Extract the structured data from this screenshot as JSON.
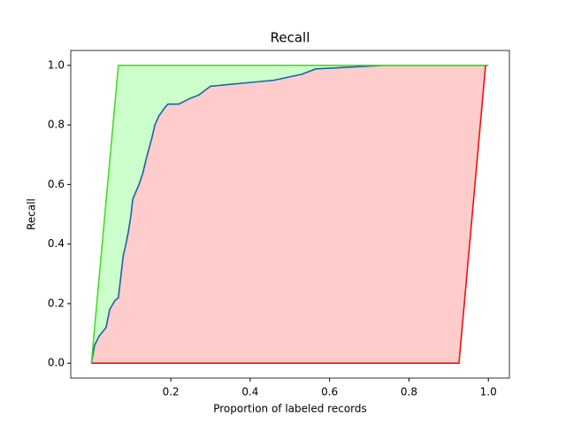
{
  "chart_data": {
    "type": "line",
    "title": "Recall",
    "x_label": "Proportion of labeled records",
    "y_label": "Recall",
    "series": [
      {
        "color": "#1f5fa8",
        "x": [
          0,
          0.008,
          0.019,
          0.037,
          0.046,
          0.059,
          0.068,
          0.075,
          0.08,
          0.087,
          0.093,
          0.1,
          0.104,
          0.12,
          0.13,
          0.137,
          0.145,
          0.153,
          0.16,
          0.17,
          0.186,
          0.193,
          0.22,
          0.25,
          0.27,
          0.3,
          0.38,
          0.46,
          0.53,
          0.565,
          0.737,
          1.0
        ],
        "values": [
          0,
          0.06,
          0.09,
          0.12,
          0.18,
          0.21,
          0.22,
          0.3,
          0.36,
          0.4,
          0.44,
          0.5,
          0.55,
          0.6,
          0.64,
          0.68,
          0.72,
          0.76,
          0.8,
          0.83,
          0.86,
          0.87,
          0.87,
          0.89,
          0.9,
          0.93,
          0.94,
          0.95,
          0.97,
          0.988,
          1.0,
          1.0
        ],
        "fill": "#ffcccc"
      },
      {
        "color": "#44dd22",
        "x": [
          0,
          0.068,
          1.0
        ],
        "values": [
          0,
          1.0,
          1.0
        ],
        "fill": "#ccffcc"
      },
      {
        "color": "#ee1111",
        "x": [
          0,
          0.926,
          0.993
        ],
        "values": [
          0,
          0,
          1.0
        ]
      }
    ],
    "xlim": [
      -0.052,
      1.053
    ],
    "ylim": [
      -0.05,
      1.05
    ],
    "xticks": [
      0.2,
      0.4,
      0.6,
      0.8,
      {
        "value": 1.0,
        "label": "1.0"
      }
    ],
    "yticks": [
      {
        "value": 0,
        "label": "0.0"
      },
      0.2,
      0.4,
      0.6,
      0.8,
      {
        "value": 1.0,
        "label": "1.0"
      }
    ]
  }
}
